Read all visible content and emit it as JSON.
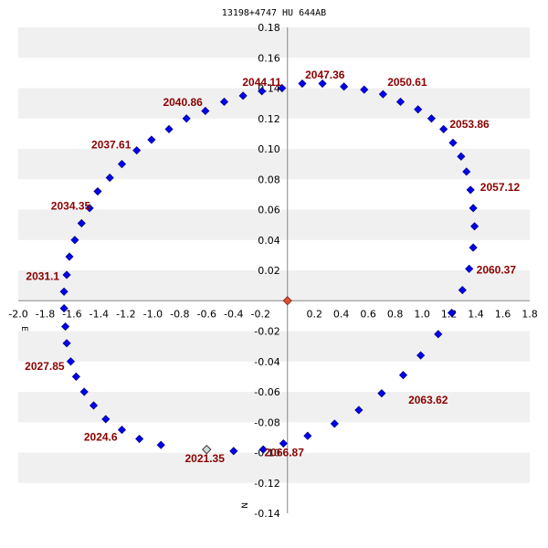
{
  "chart_data": {
    "type": "scatter",
    "title": "13198+4747 HU  644AB",
    "xlim": [
      -2.0,
      1.8
    ],
    "ylim": [
      -0.14,
      0.18
    ],
    "x_ticks": [
      "-2.0",
      "-1.8",
      "-1.6",
      "-1.4",
      "-1.2",
      "-1.0",
      "-0.8",
      "-0.6",
      "-0.4",
      "-0.2",
      "0.2",
      "0.4",
      "0.6",
      "0.8",
      "1.0",
      "1.2",
      "1.4",
      "1.6",
      "1.8"
    ],
    "x_tick_values": [
      -2.0,
      -1.8,
      -1.6,
      -1.4,
      -1.2,
      -1.0,
      -0.8,
      -0.6,
      -0.4,
      -0.2,
      0.2,
      0.4,
      0.6,
      0.8,
      1.0,
      1.2,
      1.4,
      1.6,
      1.8
    ],
    "y_ticks": [
      "0.18",
      "0.16",
      "0.14",
      "0.12",
      "0.10",
      "0.08",
      "0.06",
      "0.04",
      "0.02",
      "-0.02",
      "-0.04",
      "-0.06",
      "-0.08",
      "-0.10",
      "-0.12",
      "-0.14"
    ],
    "y_tick_values": [
      0.18,
      0.16,
      0.14,
      0.12,
      0.1,
      0.08,
      0.06,
      0.04,
      0.02,
      -0.02,
      -0.04,
      -0.06,
      -0.08,
      -0.1,
      -0.12,
      -0.14
    ],
    "direction_labels": {
      "east": "E",
      "north": "N"
    },
    "primary": [
      0.0,
      0.0
    ],
    "current_position": [
      -0.6,
      -0.098
    ],
    "orbit_points": [
      [
        -0.4,
        -0.099
      ],
      [
        -0.18,
        -0.098
      ],
      [
        -0.03,
        -0.094
      ],
      [
        0.15,
        -0.089
      ],
      [
        0.35,
        -0.081
      ],
      [
        0.53,
        -0.072
      ],
      [
        0.7,
        -0.061
      ],
      [
        0.86,
        -0.049
      ],
      [
        0.99,
        -0.036
      ],
      [
        1.12,
        -0.022
      ],
      [
        1.22,
        -0.008
      ],
      [
        1.3,
        0.007
      ],
      [
        1.35,
        0.021
      ],
      [
        1.38,
        0.035
      ],
      [
        1.39,
        0.049
      ],
      [
        1.38,
        0.061
      ],
      [
        1.36,
        0.073
      ],
      [
        1.33,
        0.085
      ],
      [
        1.29,
        0.095
      ],
      [
        1.23,
        0.104
      ],
      [
        1.16,
        0.113
      ],
      [
        1.07,
        0.12
      ],
      [
        0.97,
        0.126
      ],
      [
        0.84,
        0.131
      ],
      [
        0.71,
        0.136
      ],
      [
        0.57,
        0.139
      ],
      [
        0.42,
        0.141
      ],
      [
        0.26,
        0.143
      ],
      [
        0.11,
        0.143
      ],
      [
        -0.04,
        0.14
      ],
      [
        -0.19,
        0.138
      ],
      [
        -0.33,
        0.135
      ],
      [
        -0.47,
        0.131
      ],
      [
        -0.61,
        0.125
      ],
      [
        -0.75,
        0.12
      ],
      [
        -0.88,
        0.113
      ],
      [
        -1.01,
        0.106
      ],
      [
        -1.12,
        0.099
      ],
      [
        -1.23,
        0.09
      ],
      [
        -1.32,
        0.081
      ],
      [
        -1.41,
        0.072
      ],
      [
        -1.47,
        0.061
      ],
      [
        -1.53,
        0.051
      ],
      [
        -1.58,
        0.04
      ],
      [
        -1.62,
        0.029
      ],
      [
        -1.64,
        0.017
      ],
      [
        -1.66,
        0.006
      ],
      [
        -1.66,
        -0.005
      ],
      [
        -1.65,
        -0.017
      ],
      [
        -1.64,
        -0.028
      ],
      [
        -1.61,
        -0.04
      ],
      [
        -1.57,
        -0.05
      ],
      [
        -1.51,
        -0.06
      ],
      [
        -1.44,
        -0.069
      ],
      [
        -1.35,
        -0.078
      ],
      [
        -1.23,
        -0.085
      ],
      [
        -1.1,
        -0.091
      ],
      [
        -0.94,
        -0.095
      ]
    ],
    "annotations": [
      {
        "text": "2021.35",
        "x": -0.6,
        "y": -0.098
      },
      {
        "text": "2024.6",
        "x": -1.23,
        "y": -0.085
      },
      {
        "text": "2027.85",
        "x": -1.61,
        "y": -0.04
      },
      {
        "text": "2031.1",
        "x": -1.64,
        "y": 0.017
      },
      {
        "text": "2034.35",
        "x": -1.41,
        "y": 0.061
      },
      {
        "text": "2037.61",
        "x": -1.12,
        "y": 0.099
      },
      {
        "text": "2040.86",
        "x": -0.61,
        "y": 0.125
      },
      {
        "text": "2044.11",
        "x": -0.19,
        "y": 0.138
      },
      {
        "text": "2047.36",
        "x": 0.26,
        "y": 0.143
      },
      {
        "text": "2050.61",
        "x": 0.71,
        "y": 0.139
      },
      {
        "text": "2053.86",
        "x": 1.16,
        "y": 0.113
      },
      {
        "text": "2057.12",
        "x": 1.38,
        "y": 0.073
      },
      {
        "text": "2060.37",
        "x": 1.35,
        "y": 0.021
      },
      {
        "text": "2063.62",
        "x": 0.86,
        "y": -0.061
      },
      {
        "text": "2066.87",
        "x": -0.03,
        "y": -0.094
      }
    ],
    "colors": {
      "point": "#0000ee",
      "point_stroke": "#00008b",
      "primary": "#e05030",
      "current": "#d8d8d8",
      "annotation": "#8b0000",
      "band": "#f0f0f0"
    }
  }
}
